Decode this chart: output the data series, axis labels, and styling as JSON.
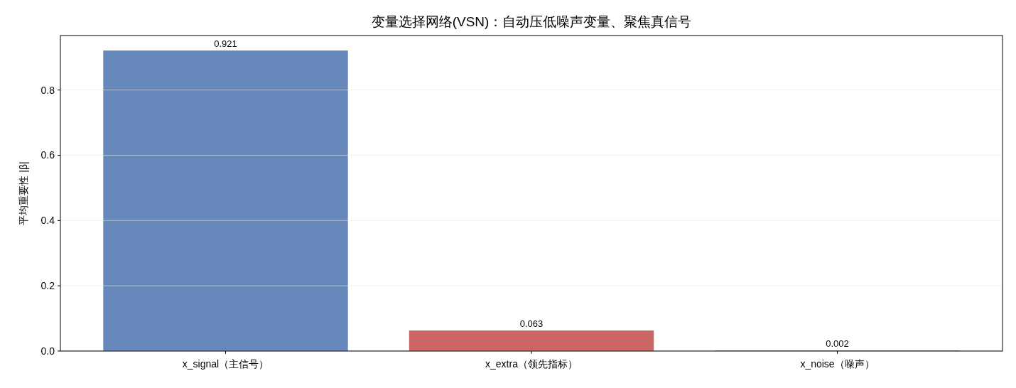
{
  "chart_data": {
    "type": "bar",
    "title": "变量选择网络(VSN)：自动压低噪声变量、聚焦真信号",
    "ylabel": "平均重要性 |β|",
    "categories": [
      "x_signal（主信号）",
      "x_extra（领先指标）",
      "x_noise（噪声）"
    ],
    "values": [
      0.921,
      0.063,
      0.002
    ],
    "colors": [
      "#6788bb",
      "#cc6666",
      "#5fa55f"
    ],
    "data_labels": true,
    "ylim": [
      0,
      0.967
    ],
    "yticks": [
      {
        "value": 0,
        "label": "0.0"
      },
      {
        "value": 0.2,
        "label": "0.2"
      },
      {
        "value": 0.4,
        "label": "0.4"
      },
      {
        "value": 0.6,
        "label": "0.6"
      },
      {
        "value": 0.8,
        "label": "0.8"
      }
    ],
    "grid": "y"
  }
}
